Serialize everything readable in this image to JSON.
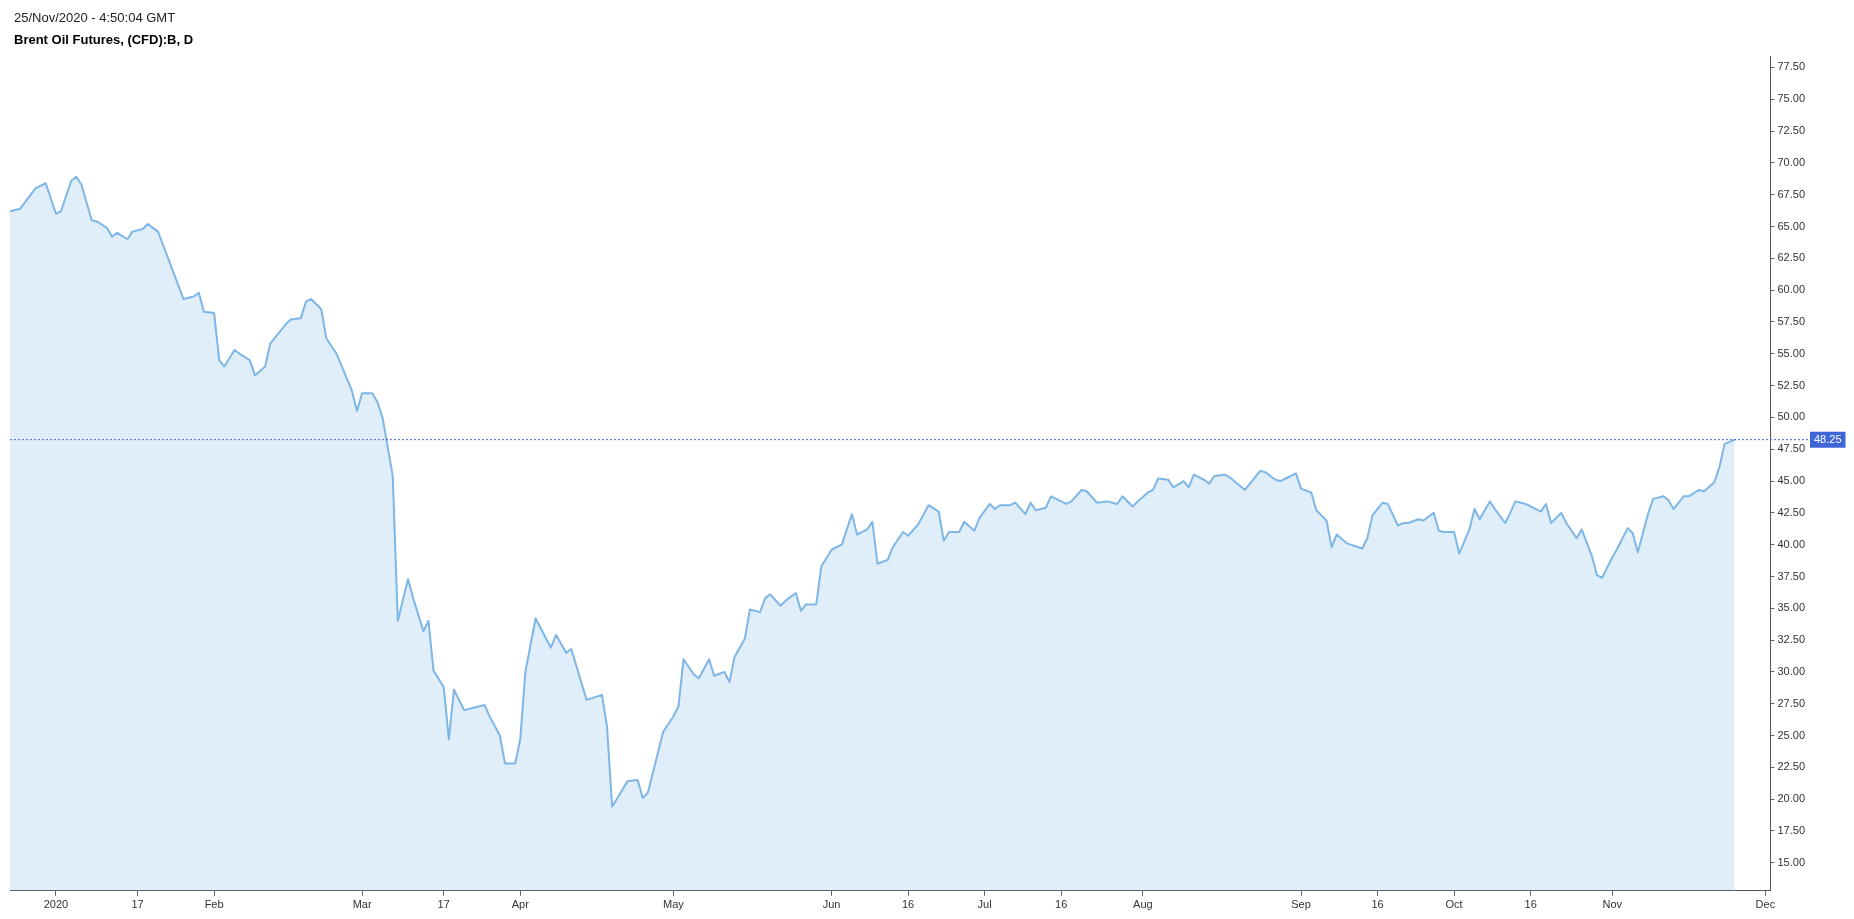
{
  "chart_data": {
    "type": "area",
    "title": "Brent Oil Futures, (CFD):B, D",
    "subtitle": "25/Nov/2020 - 4:50:04 GMT",
    "color": "#7eb6e6",
    "grid": false,
    "legend": false,
    "x": [
      "2019-12-23",
      "2019-12-25",
      "2019-12-28",
      "2019-12-30",
      "2020-01-01",
      "2020-01-02",
      "2020-01-04",
      "2020-01-05",
      "2020-01-06",
      "2020-01-08",
      "2020-01-09",
      "2020-01-11",
      "2020-01-12",
      "2020-01-13",
      "2020-01-15",
      "2020-01-16",
      "2020-01-18",
      "2020-01-19",
      "2020-01-21",
      "2020-01-26",
      "2020-01-28",
      "2020-01-29",
      "2020-01-30",
      "2020-02-01",
      "2020-02-02",
      "2020-02-03",
      "2020-02-05",
      "2020-02-06",
      "2020-02-08",
      "2020-02-09",
      "2020-02-11",
      "2020-02-12",
      "2020-02-13",
      "2020-02-15",
      "2020-02-16",
      "2020-02-18",
      "2020-02-19",
      "2020-02-20",
      "2020-02-22",
      "2020-02-23",
      "2020-02-25",
      "2020-02-28",
      "2020-02-29",
      "2020-03-01",
      "2020-03-03",
      "2020-03-04",
      "2020-03-05",
      "2020-03-07",
      "2020-03-08",
      "2020-03-10",
      "2020-03-11",
      "2020-03-13",
      "2020-03-14",
      "2020-03-15",
      "2020-03-17",
      "2020-03-18",
      "2020-03-19",
      "2020-03-21",
      "2020-03-23",
      "2020-03-25",
      "2020-03-26",
      "2020-03-28",
      "2020-03-29",
      "2020-03-31",
      "2020-04-01",
      "2020-04-02",
      "2020-04-04",
      "2020-04-07",
      "2020-04-08",
      "2020-04-10",
      "2020-04-11",
      "2020-04-14",
      "2020-04-17",
      "2020-04-18",
      "2020-04-19",
      "2020-04-22",
      "2020-04-24",
      "2020-04-25",
      "2020-04-26",
      "2020-04-29",
      "2020-05-01",
      "2020-05-02",
      "2020-05-03",
      "2020-05-05",
      "2020-05-06",
      "2020-05-08",
      "2020-05-09",
      "2020-05-11",
      "2020-05-12",
      "2020-05-13",
      "2020-05-15",
      "2020-05-16",
      "2020-05-18",
      "2020-05-19",
      "2020-05-20",
      "2020-05-22",
      "2020-05-23",
      "2020-05-25",
      "2020-05-26",
      "2020-05-27",
      "2020-05-29",
      "2020-05-30",
      "2020-06-01",
      "2020-06-03",
      "2020-06-05",
      "2020-06-06",
      "2020-06-08",
      "2020-06-09",
      "2020-06-10",
      "2020-06-12",
      "2020-06-13",
      "2020-06-15",
      "2020-06-16",
      "2020-06-18",
      "2020-06-20",
      "2020-06-22",
      "2020-06-23",
      "2020-06-24",
      "2020-06-26",
      "2020-06-27",
      "2020-06-29",
      "2020-06-30",
      "2020-07-02",
      "2020-07-03",
      "2020-07-04",
      "2020-07-06",
      "2020-07-07",
      "2020-07-09",
      "2020-07-10",
      "2020-07-11",
      "2020-07-13",
      "2020-07-14",
      "2020-07-16",
      "2020-07-17",
      "2020-07-18",
      "2020-07-20",
      "2020-07-21",
      "2020-07-23",
      "2020-07-25",
      "2020-07-27",
      "2020-07-28",
      "2020-07-30",
      "2020-07-31",
      "2020-08-02",
      "2020-08-03",
      "2020-08-04",
      "2020-08-06",
      "2020-08-07",
      "2020-08-09",
      "2020-08-10",
      "2020-08-11",
      "2020-08-13",
      "2020-08-14",
      "2020-08-15",
      "2020-08-17",
      "2020-08-18",
      "2020-08-21",
      "2020-08-24",
      "2020-08-25",
      "2020-08-27",
      "2020-08-28",
      "2020-08-29",
      "2020-08-31",
      "2020-09-01",
      "2020-09-03",
      "2020-09-04",
      "2020-09-06",
      "2020-09-07",
      "2020-09-08",
      "2020-09-10",
      "2020-09-13",
      "2020-09-14",
      "2020-09-15",
      "2020-09-17",
      "2020-09-18",
      "2020-09-20",
      "2020-09-21",
      "2020-09-22",
      "2020-09-24",
      "2020-09-25",
      "2020-09-27",
      "2020-09-28",
      "2020-09-29",
      "2020-10-01",
      "2020-10-02",
      "2020-10-04",
      "2020-10-05",
      "2020-10-06",
      "2020-10-08",
      "2020-10-09",
      "2020-10-11",
      "2020-10-12",
      "2020-10-13",
      "2020-10-15",
      "2020-10-16",
      "2020-10-18",
      "2020-10-19",
      "2020-10-20",
      "2020-10-22",
      "2020-10-23",
      "2020-10-25",
      "2020-10-26",
      "2020-10-28",
      "2020-10-29",
      "2020-10-30",
      "2020-11-01",
      "2020-11-02",
      "2020-11-04",
      "2020-11-05",
      "2020-11-06",
      "2020-11-08",
      "2020-11-09",
      "2020-11-11",
      "2020-11-12",
      "2020-11-13",
      "2020-11-15",
      "2020-11-16",
      "2020-11-18",
      "2020-11-19",
      "2020-11-21",
      "2020-11-22",
      "2020-11-23",
      "2020-11-25"
    ],
    "values": [
      66.2,
      66.4,
      68.0,
      68.4,
      66.0,
      66.2,
      68.6,
      68.9,
      68.3,
      65.5,
      65.4,
      64.9,
      64.2,
      64.5,
      64.0,
      64.6,
      64.8,
      65.2,
      64.6,
      59.3,
      59.5,
      59.8,
      58.3,
      58.2,
      54.5,
      54.0,
      55.3,
      55.0,
      54.5,
      53.3,
      54.0,
      55.8,
      56.3,
      57.3,
      57.7,
      57.8,
      59.1,
      59.3,
      58.5,
      56.2,
      55.0,
      52.1,
      50.5,
      51.9,
      51.9,
      51.2,
      50.0,
      45.4,
      34.0,
      37.3,
      35.8,
      33.2,
      34.0,
      30.1,
      28.8,
      24.7,
      28.6,
      27.0,
      27.2,
      27.4,
      26.5,
      25.0,
      22.8,
      22.8,
      24.7,
      30.0,
      34.2,
      31.9,
      32.9,
      31.5,
      31.8,
      27.8,
      28.2,
      25.7,
      19.4,
      21.4,
      21.5,
      20.1,
      20.5,
      25.3,
      26.5,
      27.3,
      31.0,
      29.8,
      29.5,
      31.0,
      29.7,
      30.0,
      29.2,
      31.2,
      32.6,
      34.9,
      34.7,
      35.8,
      36.1,
      35.2,
      35.6,
      36.2,
      34.8,
      35.3,
      35.3,
      38.3,
      39.6,
      40.0,
      42.4,
      40.8,
      41.2,
      41.8,
      38.5,
      38.8,
      39.8,
      41.0,
      40.7,
      41.6,
      43.1,
      42.6,
      40.3,
      41.0,
      41.0,
      41.8,
      41.1,
      42.1,
      43.2,
      42.8,
      43.1,
      43.1,
      43.3,
      42.4,
      43.3,
      42.7,
      42.9,
      43.8,
      43.4,
      43.2,
      43.4,
      44.3,
      44.2,
      43.3,
      43.4,
      43.2,
      43.8,
      43.0,
      43.4,
      44.1,
      44.3,
      45.2,
      45.1,
      44.5,
      45.0,
      44.5,
      45.5,
      45.1,
      44.8,
      45.4,
      45.5,
      45.3,
      44.3,
      45.8,
      45.7,
      45.1,
      45.0,
      45.2,
      45.6,
      44.4,
      44.1,
      42.7,
      41.9,
      39.8,
      40.8,
      40.1,
      39.7,
      40.5,
      42.3,
      43.3,
      43.2,
      41.5,
      41.7,
      41.7,
      42.0,
      41.9,
      42.5,
      41.1,
      41.0,
      41.0,
      39.3,
      41.2,
      42.8,
      42.0,
      43.4,
      42.8,
      41.7,
      42.5,
      43.4,
      43.2,
      43.0,
      42.6,
      43.2,
      41.7,
      42.5,
      41.7,
      40.5,
      41.2,
      39.1,
      37.6,
      37.4,
      39.0,
      39.7,
      41.3,
      40.9,
      39.4,
      42.4,
      43.6,
      43.8,
      43.5,
      42.8,
      43.8,
      43.8,
      44.3,
      44.2,
      44.9,
      46.1,
      47.9,
      48.25
    ],
    "xlim": [
      "2019-12-23",
      "2020-12-02"
    ],
    "xticks": [
      {
        "value": "2020-01-01",
        "label": "2020"
      },
      {
        "value": "2020-01-17",
        "label": "17"
      },
      {
        "value": "2020-02-01",
        "label": "Feb"
      },
      {
        "value": "2020-03-01",
        "label": "Mar"
      },
      {
        "value": "2020-03-17",
        "label": "17"
      },
      {
        "value": "2020-04-01",
        "label": "Apr"
      },
      {
        "value": "2020-05-01",
        "label": "May"
      },
      {
        "value": "2020-06-01",
        "label": "Jun"
      },
      {
        "value": "2020-06-16",
        "label": "16"
      },
      {
        "value": "2020-07-01",
        "label": "Jul"
      },
      {
        "value": "2020-07-16",
        "label": "16"
      },
      {
        "value": "2020-08-01",
        "label": "Aug"
      },
      {
        "value": "2020-09-01",
        "label": "Sep"
      },
      {
        "value": "2020-09-16",
        "label": "16"
      },
      {
        "value": "2020-10-01",
        "label": "Oct"
      },
      {
        "value": "2020-10-16",
        "label": "16"
      },
      {
        "value": "2020-11-01",
        "label": "Nov"
      },
      {
        "value": "2020-12-01",
        "label": "Dec"
      }
    ],
    "ylim": [
      12.8,
      78.4
    ],
    "yticks": [
      {
        "value": 15,
        "label": "15.00"
      },
      {
        "value": 17.5,
        "label": "17.50"
      },
      {
        "value": 20,
        "label": "20.00"
      },
      {
        "value": 22.5,
        "label": "22.50"
      },
      {
        "value": 25,
        "label": "25.00"
      },
      {
        "value": 27.5,
        "label": "27.50"
      },
      {
        "value": 30,
        "label": "30.00"
      },
      {
        "value": 32.5,
        "label": "32.50"
      },
      {
        "value": 35,
        "label": "35.00"
      },
      {
        "value": 37.5,
        "label": "37.50"
      },
      {
        "value": 40,
        "label": "40.00"
      },
      {
        "value": 42.5,
        "label": "42.50"
      },
      {
        "value": 45,
        "label": "45.00"
      },
      {
        "value": 47.5,
        "label": "47.50"
      },
      {
        "value": 50,
        "label": "50.00"
      },
      {
        "value": 52.5,
        "label": "52.50"
      },
      {
        "value": 55,
        "label": "55.00"
      },
      {
        "value": 57.5,
        "label": "57.50"
      },
      {
        "value": 60,
        "label": "60.00"
      },
      {
        "value": 62.5,
        "label": "62.50"
      },
      {
        "value": 65,
        "label": "65.00"
      },
      {
        "value": 67.5,
        "label": "67.50"
      },
      {
        "value": 70,
        "label": "70.00"
      },
      {
        "value": 72.5,
        "label": "72.50"
      },
      {
        "value": 75,
        "label": "75.00"
      },
      {
        "value": 77.5,
        "label": "77.50"
      }
    ],
    "ref_lines": [
      {
        "axis": "y",
        "value": 48.25,
        "label": "48.25",
        "color": "#3f66d9",
        "line_style": "dotted"
      }
    ]
  }
}
